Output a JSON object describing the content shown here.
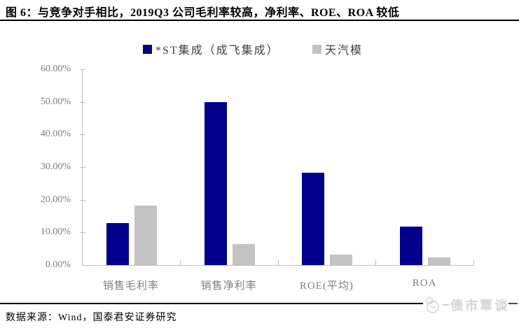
{
  "figure": {
    "title": "图 6：与竞争对手相比，2019Q3 公司毛利率较高，净利率、ROE、ROA 较低",
    "source": "数据来源：Wind，国泰君安证券研究",
    "watermark": "债市覃谈"
  },
  "colors": {
    "series1": "#00008B",
    "series2": "#C3C3C3",
    "axis": "#BEBEBE",
    "tick_label": "#7F7F7F",
    "title": "#000000",
    "watermark": "#D7D7D7"
  },
  "chart_data": {
    "type": "bar",
    "title": "",
    "categories": [
      "销售毛利率",
      "销售净利率",
      "ROE(平均)",
      "ROA"
    ],
    "series": [
      {
        "name": "*ST集成（成飞集成）",
        "color": "#00008B",
        "values": [
          12.8,
          50.0,
          28.2,
          11.8
        ]
      },
      {
        "name": "天汽模",
        "color": "#C3C3C3",
        "values": [
          18.3,
          6.4,
          3.3,
          2.3
        ]
      }
    ],
    "xlabel": "",
    "ylabel": "",
    "ylim": [
      0,
      60
    ],
    "ytick_step": 10,
    "ytick_labels": [
      "0.00%",
      "10.00%",
      "20.00%",
      "30.00%",
      "40.00%",
      "50.00%",
      "60.00%"
    ],
    "legend_position": "top",
    "grid": false,
    "unit": "percent"
  }
}
